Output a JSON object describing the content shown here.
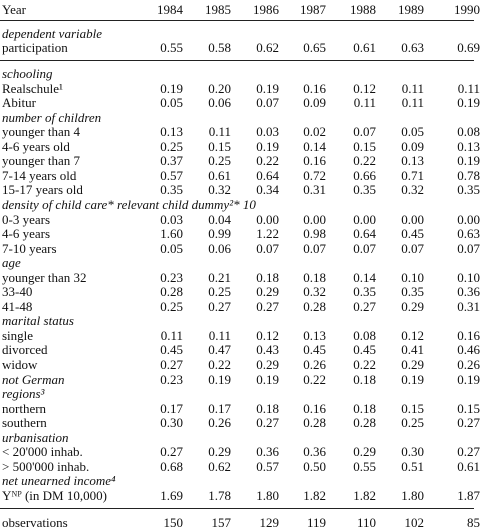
{
  "table": {
    "header": {
      "label": "Year",
      "years": [
        "1984",
        "1985",
        "1986",
        "1987",
        "1988",
        "1989",
        "1990"
      ]
    },
    "groups": [
      {
        "heading": "dependent variable",
        "rows": [
          {
            "label": "participation",
            "values": [
              "0.55",
              "0.58",
              "0.62",
              "0.65",
              "0.61",
              "0.63",
              "0.69"
            ]
          }
        ]
      },
      {
        "heading": "schooling",
        "rows": [
          {
            "label": "Realschule¹",
            "values": [
              "0.19",
              "0.20",
              "0.19",
              "0.16",
              "0.12",
              "0.11",
              "0.11"
            ]
          },
          {
            "label": "Abitur",
            "values": [
              "0.05",
              "0.06",
              "0.07",
              "0.09",
              "0.11",
              "0.11",
              "0.19"
            ]
          }
        ]
      },
      {
        "heading": "number of children",
        "rows": [
          {
            "label": "younger than 4",
            "values": [
              "0.13",
              "0.11",
              "0.03",
              "0.02",
              "0.07",
              "0.05",
              "0.08"
            ]
          },
          {
            "label": "4-6 years old",
            "values": [
              "0.25",
              "0.15",
              "0.19",
              "0.14",
              "0.15",
              "0.09",
              "0.13"
            ]
          },
          {
            "label": "younger than 7",
            "values": [
              "0.37",
              "0.25",
              "0.22",
              "0.16",
              "0.22",
              "0.13",
              "0.19"
            ]
          },
          {
            "label": "7-14 years old",
            "values": [
              "0.57",
              "0.61",
              "0.64",
              "0.72",
              "0.66",
              "0.71",
              "0.78"
            ]
          },
          {
            "label": "15-17 years old",
            "values": [
              "0.35",
              "0.32",
              "0.34",
              "0.31",
              "0.35",
              "0.32",
              "0.35"
            ]
          }
        ]
      },
      {
        "heading": "density of child care* relevant child dummy²* 10",
        "rows": [
          {
            "label": "0-3 years",
            "values": [
              "0.03",
              "0.04",
              "0.00",
              "0.00",
              "0.00",
              "0.00",
              "0.00"
            ]
          },
          {
            "label": "4-6 years",
            "values": [
              "1.60",
              "0.99",
              "1.22",
              "0.98",
              "0.64",
              "0.45",
              "0.63"
            ]
          },
          {
            "label": "7-10 years",
            "values": [
              "0.05",
              "0.06",
              "0.07",
              "0.07",
              "0.07",
              "0.07",
              "0.07"
            ]
          }
        ]
      },
      {
        "heading": "age",
        "rows": [
          {
            "label": "younger than 32",
            "values": [
              "0.23",
              "0.21",
              "0.18",
              "0.18",
              "0.14",
              "0.10",
              "0.10"
            ]
          },
          {
            "label": "33-40",
            "values": [
              "0.28",
              "0.25",
              "0.29",
              "0.32",
              "0.35",
              "0.35",
              "0.36"
            ]
          },
          {
            "label": "41-48",
            "values": [
              "0.25",
              "0.27",
              "0.27",
              "0.28",
              "0.27",
              "0.29",
              "0.31"
            ]
          }
        ]
      },
      {
        "heading": "marital status",
        "rows": [
          {
            "label": "single",
            "values": [
              "0.11",
              "0.11",
              "0.12",
              "0.13",
              "0.08",
              "0.12",
              "0.16"
            ]
          },
          {
            "label": "divorced",
            "values": [
              "0.45",
              "0.47",
              "0.43",
              "0.45",
              "0.45",
              "0.41",
              "0.46"
            ]
          },
          {
            "label": "widow",
            "values": [
              "0.27",
              "0.22",
              "0.29",
              "0.26",
              "0.22",
              "0.29",
              "0.26"
            ]
          }
        ]
      },
      {
        "heading": "not German",
        "values": [
          "0.23",
          "0.19",
          "0.19",
          "0.22",
          "0.18",
          "0.19",
          "0.19"
        ]
      },
      {
        "heading": "regions³",
        "rows": [
          {
            "label": "northern",
            "values": [
              "0.17",
              "0.17",
              "0.18",
              "0.16",
              "0.18",
              "0.15",
              "0.15"
            ]
          },
          {
            "label": "southern",
            "values": [
              "0.30",
              "0.26",
              "0.27",
              "0.28",
              "0.28",
              "0.25",
              "0.27"
            ]
          }
        ]
      },
      {
        "heading": "urbanisation",
        "rows": [
          {
            "label": "< 20'000 inhab.",
            "values": [
              "0.27",
              "0.29",
              "0.36",
              "0.36",
              "0.29",
              "0.30",
              "0.27"
            ]
          },
          {
            "label": "> 500'000 inhab.",
            "values": [
              "0.68",
              "0.62",
              "0.57",
              "0.50",
              "0.55",
              "0.51",
              "0.61"
            ]
          }
        ]
      },
      {
        "heading": "net unearned income⁴",
        "rows": [
          {
            "label": "Yᴺᴾ (in DM 10,000)",
            "values": [
              "1.69",
              "1.78",
              "1.80",
              "1.82",
              "1.82",
              "1.80",
              "1.87"
            ]
          }
        ]
      }
    ],
    "footer": {
      "label": "observations",
      "values": [
        "150",
        "157",
        "129",
        "119",
        "110",
        "102",
        "85"
      ]
    }
  }
}
